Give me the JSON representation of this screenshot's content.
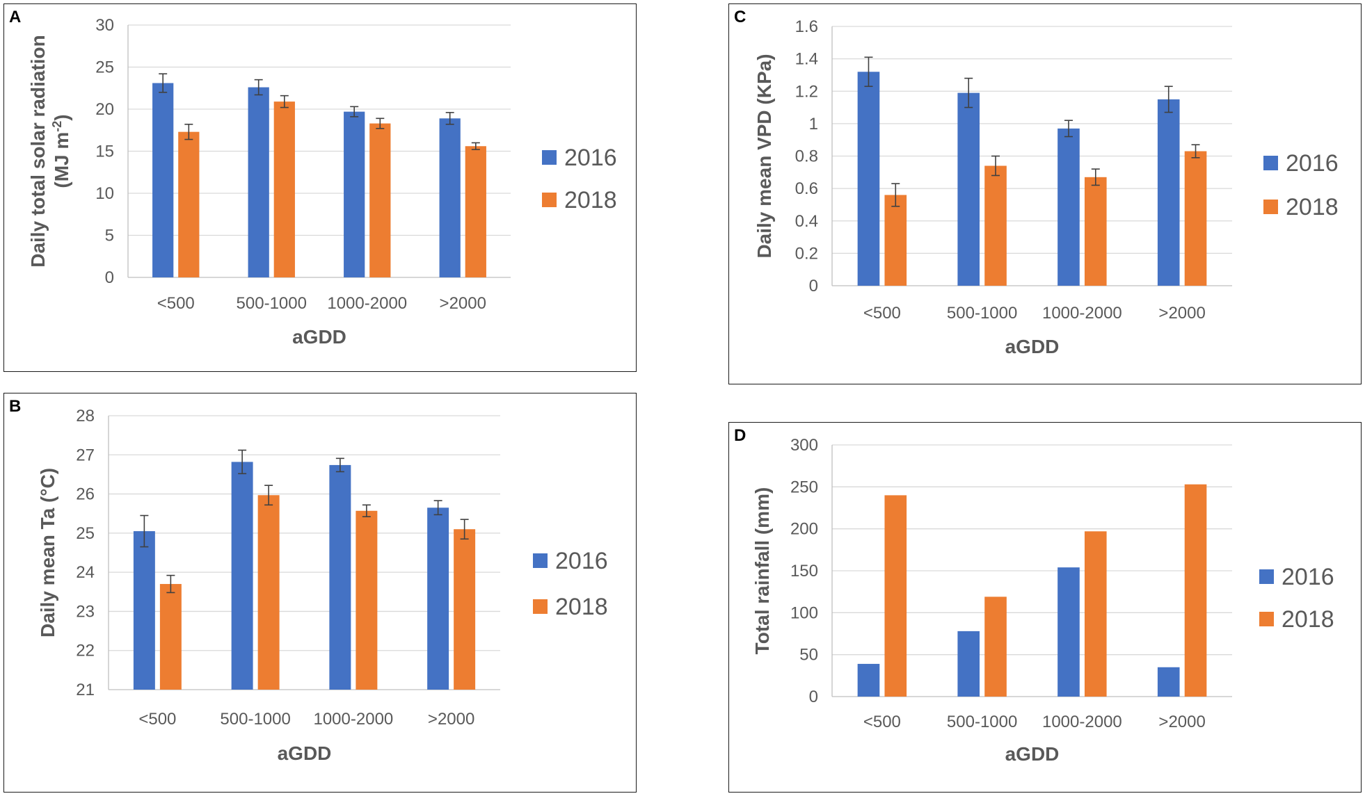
{
  "colors": {
    "s2016": "#4472c4",
    "s2018": "#ed7d31"
  },
  "chart_data": [
    {
      "panel": "A",
      "type": "bar",
      "title": "",
      "xlabel": "aGDD",
      "ylabel": "Daily total solar radiation",
      "ylabel_line2": "(MJ m",
      "ylabel_sup": "-2",
      "ylabel_end": ")",
      "categories": [
        "<500",
        "500-1000",
        "1000-2000",
        ">2000"
      ],
      "ylim": [
        0,
        30
      ],
      "yticks": [
        0,
        5,
        10,
        15,
        20,
        25,
        30
      ],
      "ytick_labels": [
        "0",
        "5",
        "10",
        "15",
        "20",
        "25",
        "30"
      ],
      "series": [
        {
          "name": "2016",
          "values": [
            23.1,
            22.6,
            19.7,
            18.9
          ],
          "errors": [
            1.1,
            0.9,
            0.6,
            0.7
          ]
        },
        {
          "name": "2018",
          "values": [
            17.3,
            20.9,
            18.3,
            15.6
          ],
          "errors": [
            0.9,
            0.7,
            0.6,
            0.4
          ]
        }
      ]
    },
    {
      "panel": "B",
      "type": "bar",
      "title": "",
      "xlabel": "aGDD",
      "ylabel": "Daily mean Ta (°C)",
      "categories": [
        "<500",
        "500-1000",
        "1000-2000",
        ">2000"
      ],
      "ylim": [
        21,
        28
      ],
      "yticks": [
        21,
        22,
        23,
        24,
        25,
        26,
        27,
        28
      ],
      "ytick_labels": [
        "21",
        "22",
        "23",
        "24",
        "25",
        "26",
        "27",
        "28"
      ],
      "series": [
        {
          "name": "2016",
          "values": [
            25.05,
            26.82,
            26.74,
            25.65
          ],
          "errors": [
            0.4,
            0.3,
            0.17,
            0.18
          ]
        },
        {
          "name": "2018",
          "values": [
            23.7,
            25.97,
            25.57,
            25.1
          ],
          "errors": [
            0.22,
            0.25,
            0.15,
            0.25
          ]
        }
      ]
    },
    {
      "panel": "C",
      "type": "bar",
      "title": "",
      "xlabel": "aGDD",
      "ylabel": "Daily mean VPD (KPa)",
      "categories": [
        "<500",
        "500-1000",
        "1000-2000",
        ">2000"
      ],
      "ylim": [
        0,
        1.6
      ],
      "yticks": [
        0,
        0.2,
        0.4,
        0.6,
        0.8,
        1.0,
        1.2,
        1.4,
        1.6
      ],
      "ytick_labels": [
        "0",
        "0.2",
        "0.4",
        "0.6",
        "0.8",
        "1",
        "1.2",
        "1.4",
        "1.6"
      ],
      "series": [
        {
          "name": "2016",
          "values": [
            1.32,
            1.19,
            0.97,
            1.15
          ],
          "errors": [
            0.09,
            0.09,
            0.05,
            0.08
          ]
        },
        {
          "name": "2018",
          "values": [
            0.56,
            0.74,
            0.67,
            0.83
          ],
          "errors": [
            0.07,
            0.06,
            0.05,
            0.04
          ]
        }
      ]
    },
    {
      "panel": "D",
      "type": "bar",
      "title": "",
      "xlabel": "aGDD",
      "ylabel": "Total rainfall (mm)",
      "categories": [
        "<500",
        "500-1000",
        "1000-2000",
        ">2000"
      ],
      "ylim": [
        0,
        300
      ],
      "yticks": [
        0,
        50,
        100,
        150,
        200,
        250,
        300
      ],
      "ytick_labels": [
        "0",
        "50",
        "100",
        "150",
        "200",
        "250",
        "300"
      ],
      "series": [
        {
          "name": "2016",
          "values": [
            39,
            78,
            154,
            35
          ]
        },
        {
          "name": "2018",
          "values": [
            240,
            119,
            197,
            253
          ]
        }
      ]
    }
  ]
}
